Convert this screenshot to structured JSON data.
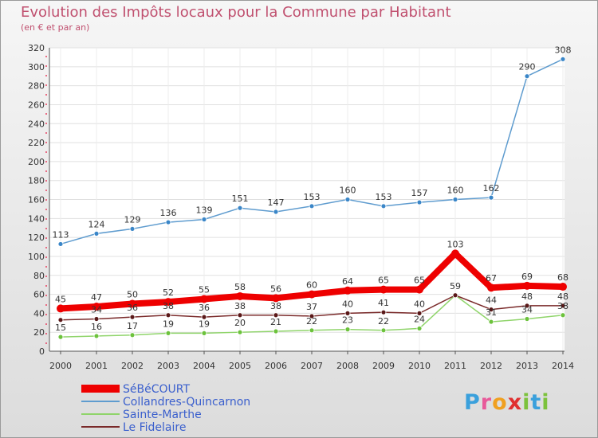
{
  "header": {
    "title": "Evolution des Impôts locaux pour la Commune par Habitant",
    "subtitle": "(en € et par an)"
  },
  "logo": {
    "text": "Proxiti",
    "parts": [
      "P",
      "r",
      "o",
      "x",
      "i",
      "t",
      "i"
    ]
  },
  "chart_data": {
    "type": "line",
    "title": "Evolution des Impôts locaux pour la Commune par Habitant",
    "subtitle": "(en € et par an)",
    "xlabel": "",
    "ylabel": "",
    "categories": [
      "2000",
      "2001",
      "2002",
      "2003",
      "2004",
      "2005",
      "2006",
      "2007",
      "2008",
      "2009",
      "2010",
      "2011",
      "2012",
      "2013",
      "2014"
    ],
    "ylim": [
      0,
      320
    ],
    "yticks": [
      0,
      20,
      40,
      60,
      80,
      100,
      120,
      140,
      160,
      180,
      200,
      220,
      240,
      260,
      280,
      300,
      320
    ],
    "grid": true,
    "legend_position": "bottom-left",
    "series": [
      {
        "name": "Collandres-Quincarnon",
        "color": "#5f9ccf",
        "marker": "#3a86c8",
        "values": [
          113,
          124,
          129,
          136,
          139,
          151,
          147,
          153,
          160,
          153,
          157,
          160,
          162,
          290,
          308
        ],
        "labels": [
          "113",
          "124",
          "129",
          "136",
          "139",
          "151",
          "147",
          "153",
          "160",
          "153",
          "157",
          "160",
          "162",
          "290",
          "308"
        ]
      },
      {
        "name": "Sainte-Marthe",
        "color": "#8fd46a",
        "marker": "#6cc23c",
        "values": [
          15,
          16,
          17,
          19,
          19,
          20,
          21,
          22,
          23,
          22,
          24,
          59,
          31,
          34,
          38
        ],
        "labels": [
          "15",
          "16",
          "17",
          "19",
          "19",
          "20",
          "21",
          "22",
          "23",
          "22",
          "24",
          "",
          "31",
          "34",
          "38"
        ]
      },
      {
        "name": "Le Fidelaire",
        "color": "#7a2a2a",
        "marker": "#5a1818",
        "values": [
          33,
          34,
          36,
          38,
          36,
          38,
          38,
          37,
          40,
          41,
          40,
          59,
          44,
          48,
          48
        ],
        "labels": [
          "",
          "34",
          "36",
          "38",
          "36",
          "38",
          "38",
          "37",
          "40",
          "41",
          "40",
          "59",
          "44",
          "48",
          "48"
        ]
      },
      {
        "name": "SéBéCOURT",
        "color": "#ee0000",
        "marker": "#ee0000",
        "values": [
          45,
          47,
          50,
          52,
          55,
          58,
          56,
          60,
          64,
          65,
          65,
          103,
          67,
          69,
          68
        ],
        "labels": [
          "45",
          "47",
          "50",
          "52",
          "55",
          "58",
          "56",
          "60",
          "64",
          "65",
          "65",
          "103",
          "67",
          "69",
          "68"
        ]
      }
    ],
    "legend": [
      "SéBéCOURT",
      "Collandres-Quincarnon",
      "Sainte-Marthe",
      "Le Fidelaire"
    ]
  }
}
